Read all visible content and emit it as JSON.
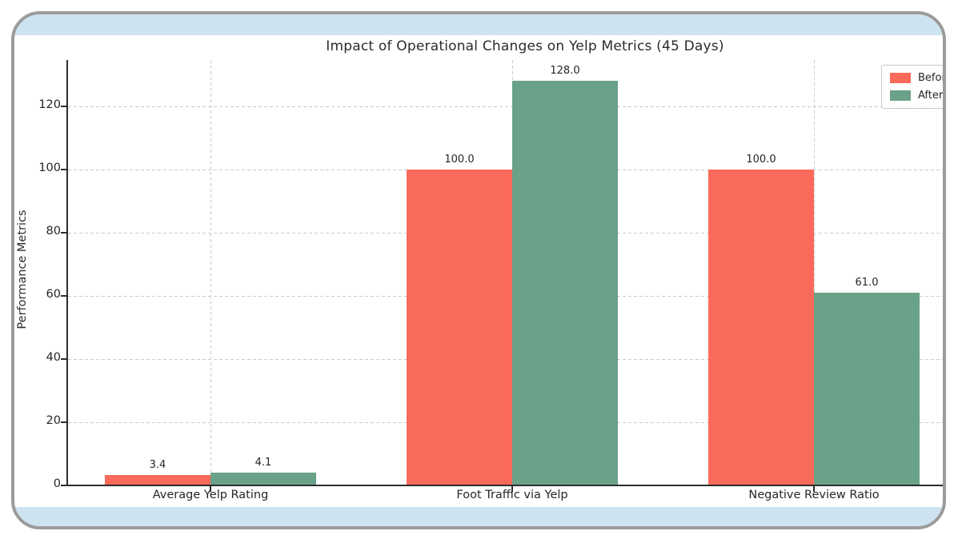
{
  "chart_data": {
    "type": "bar",
    "title": "Impact of Operational Changes on Yelp Metrics (45 Days)",
    "ylabel": "Performance Metrics",
    "xlabel": "",
    "categories": [
      "Average Yelp Rating",
      "Foot Traffic via Yelp",
      "Negative Review Ratio"
    ],
    "series": [
      {
        "name": "Before",
        "color": "#fa6a5b",
        "values": [
          3.4,
          100.0,
          100.0
        ]
      },
      {
        "name": "After",
        "color": "#6aa189",
        "values": [
          4.1,
          128.0,
          61.0
        ]
      }
    ],
    "value_labels": [
      [
        "3.4",
        "100.0",
        "100.0"
      ],
      [
        "4.1",
        "128.0",
        "61.0"
      ]
    ],
    "yticks": [
      0,
      20,
      40,
      60,
      80,
      100,
      120
    ],
    "ylim": [
      0,
      134.7
    ],
    "grid": true,
    "grid_style": "dashed",
    "legend_position": "upper right",
    "legend_entries": [
      "Before",
      "After"
    ]
  },
  "frame": {
    "border_color": "#9b9b9b",
    "band_color": "#cde4f0",
    "background": "#ffffff"
  }
}
